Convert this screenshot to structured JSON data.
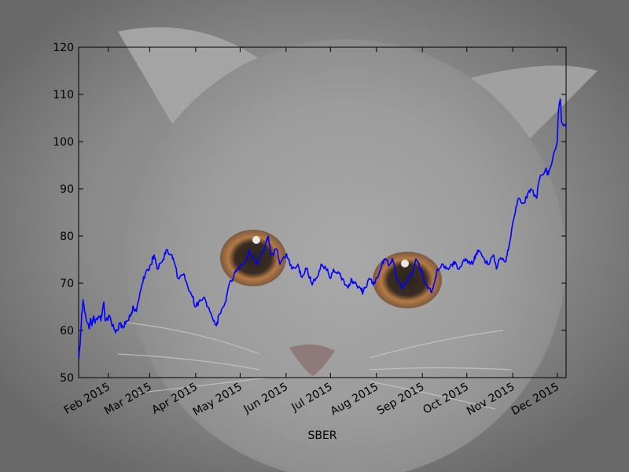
{
  "chart_data": {
    "type": "line",
    "title": "",
    "xlabel": "SBER",
    "ylabel": "",
    "ylim": [
      50,
      120
    ],
    "xlim": [
      "2015-01-12",
      "2015-12-07"
    ],
    "grid": false,
    "legend": "none",
    "line_color": "#0000ff",
    "background_image": "gray-kitten-photo",
    "y_ticks": [
      "50",
      "60",
      "70",
      "80",
      "90",
      "100",
      "110",
      "120"
    ],
    "x_ticks": [
      {
        "date": "2015-02-01",
        "label": "Feb 2015"
      },
      {
        "date": "2015-03-01",
        "label": "Mar 2015"
      },
      {
        "date": "2015-04-01",
        "label": "Apr 2015"
      },
      {
        "date": "2015-05-01",
        "label": "May 2015"
      },
      {
        "date": "2015-06-01",
        "label": "Jun 2015"
      },
      {
        "date": "2015-07-01",
        "label": "Jul 2015"
      },
      {
        "date": "2015-08-01",
        "label": "Aug 2015"
      },
      {
        "date": "2015-09-01",
        "label": "Sep 2015"
      },
      {
        "date": "2015-10-01",
        "label": "Oct 2015"
      },
      {
        "date": "2015-11-01",
        "label": "Nov 2015"
      },
      {
        "date": "2015-12-01",
        "label": "Dec 2015"
      }
    ],
    "series": [
      {
        "x": [
          "2015-01-12",
          "2015-01-13",
          "2015-01-14",
          "2015-01-15",
          "2015-01-16",
          "2015-01-19",
          "2015-01-20",
          "2015-01-21",
          "2015-01-22",
          "2015-01-23",
          "2015-01-26",
          "2015-01-27",
          "2015-01-28",
          "2015-01-29",
          "2015-01-30",
          "2015-02-02",
          "2015-02-04",
          "2015-02-06",
          "2015-02-09",
          "2015-02-11",
          "2015-02-13",
          "2015-02-16",
          "2015-02-18",
          "2015-02-20",
          "2015-02-24",
          "2015-02-26",
          "2015-03-02",
          "2015-03-04",
          "2015-03-06",
          "2015-03-10",
          "2015-03-12",
          "2015-03-16",
          "2015-03-18",
          "2015-03-20",
          "2015-03-24",
          "2015-03-26",
          "2015-03-30",
          "2015-04-01",
          "2015-04-03",
          "2015-04-07",
          "2015-04-09",
          "2015-04-13",
          "2015-04-15",
          "2015-04-17",
          "2015-04-21",
          "2015-04-23",
          "2015-04-27",
          "2015-04-29",
          "2015-05-05",
          "2015-05-07",
          "2015-05-12",
          "2015-05-14",
          "2015-05-18",
          "2015-05-20",
          "2015-05-22",
          "2015-05-26",
          "2015-05-28",
          "2015-06-01",
          "2015-06-03",
          "2015-06-05",
          "2015-06-09",
          "2015-06-11",
          "2015-06-15",
          "2015-06-17",
          "2015-06-19",
          "2015-06-23",
          "2015-06-25",
          "2015-06-29",
          "2015-07-01",
          "2015-07-03",
          "2015-07-07",
          "2015-07-09",
          "2015-07-13",
          "2015-07-15",
          "2015-07-17",
          "2015-07-21",
          "2015-07-23",
          "2015-07-27",
          "2015-07-29",
          "2015-07-31",
          "2015-08-04",
          "2015-08-06",
          "2015-08-10",
          "2015-08-12",
          "2015-08-14",
          "2015-08-18",
          "2015-08-20",
          "2015-08-24",
          "2015-08-26",
          "2015-08-28",
          "2015-09-01",
          "2015-09-03",
          "2015-09-07",
          "2015-09-09",
          "2015-09-11",
          "2015-09-15",
          "2015-09-17",
          "2015-09-21",
          "2015-09-23",
          "2015-09-25",
          "2015-09-29",
          "2015-10-01",
          "2015-10-05",
          "2015-10-07",
          "2015-10-09",
          "2015-10-13",
          "2015-10-15",
          "2015-10-19",
          "2015-10-21",
          "2015-10-23",
          "2015-10-27",
          "2015-10-29",
          "2015-11-02",
          "2015-11-05",
          "2015-11-09",
          "2015-11-11",
          "2015-11-13",
          "2015-11-17",
          "2015-11-19",
          "2015-11-23",
          "2015-11-25",
          "2015-11-27",
          "2015-12-01",
          "2015-12-02",
          "2015-12-03",
          "2015-12-04",
          "2015-12-07"
        ],
        "y": [
          54,
          57,
          63,
          66.5,
          64,
          60.5,
          62.5,
          61,
          63,
          61.5,
          63,
          62,
          64,
          66,
          62,
          63,
          61,
          59.5,
          61.5,
          60.5,
          62,
          63,
          65,
          64,
          70,
          72,
          74,
          76,
          73,
          75,
          77,
          76,
          74,
          71,
          72,
          70,
          67,
          65,
          66,
          67,
          65,
          62,
          61,
          63.5,
          66,
          69,
          72,
          73,
          75,
          77,
          74,
          75,
          78,
          80,
          76,
          77,
          74,
          76,
          75,
          73,
          74,
          71.5,
          73,
          71,
          70,
          72,
          74,
          73,
          71,
          73,
          72,
          71,
          69,
          71,
          70,
          69,
          68,
          71,
          70,
          70,
          73,
          75,
          74,
          75,
          72,
          69,
          70,
          71.5,
          73,
          75,
          72,
          70,
          68,
          70,
          73,
          74,
          73,
          74,
          74.5,
          73,
          75,
          75,
          74,
          76,
          77,
          75,
          74,
          76,
          73,
          75,
          74.5,
          77,
          84,
          88,
          87,
          89,
          90,
          88,
          92,
          94,
          93,
          95,
          100,
          107,
          109,
          104,
          103
        ]
      }
    ]
  }
}
